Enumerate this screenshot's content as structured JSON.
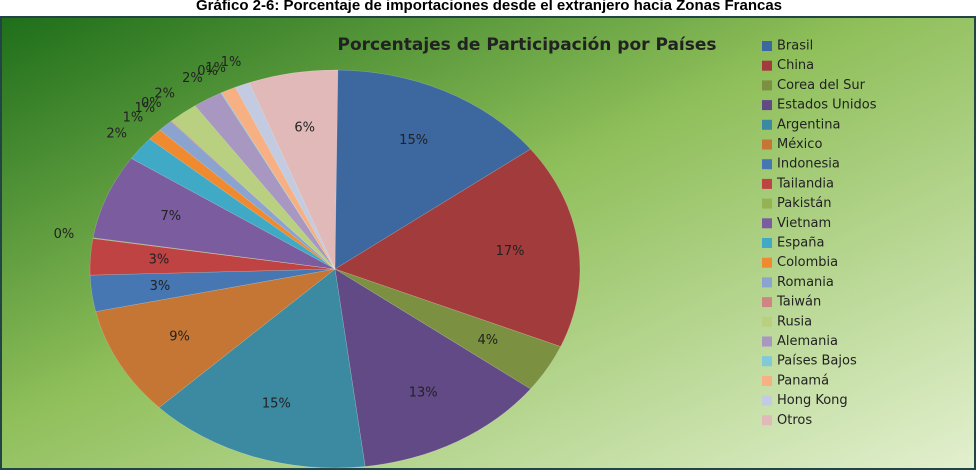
{
  "chart_data": {
    "type": "pie",
    "caption": "Gráfico 2-6: Porcentaje de importaciones desde el extranjero hacia Zonas Francas",
    "title": "Porcentajes de Participación por Países",
    "categories": [
      "Brasil",
      "China",
      "Corea del Sur",
      "Estados Unidos",
      "Argentina",
      "México",
      "Indonesia",
      "Tailandia",
      "Pakistán",
      "Vietnam",
      "España",
      "Colombia",
      "Romania",
      "Taiwán",
      "Rusia",
      "Alemania",
      "Países Bajos",
      "Panamá",
      "Hong Kong",
      "Otros"
    ],
    "values": [
      15,
      17,
      4,
      13,
      15,
      9,
      3,
      3,
      0,
      7,
      2,
      1,
      1,
      0,
      2,
      2,
      0,
      1,
      1,
      6
    ],
    "value_labels": [
      "15%",
      "17%",
      "4%",
      "13%",
      "15%",
      "9%",
      "3%",
      "3%",
      "0%",
      "7%",
      "2%",
      "1%",
      "1%",
      "0%",
      "2%",
      "2%",
      "0%",
      "1%",
      "1%",
      "6%"
    ],
    "colors": [
      "#3d679f",
      "#a23b3b",
      "#7b9040",
      "#614a85",
      "#3b8aa2",
      "#c57634",
      "#4677b3",
      "#bf4343",
      "#95b254",
      "#7a5c9f",
      "#3fa9c6",
      "#ef8a30",
      "#8aa4cf",
      "#d08585",
      "#b9d080",
      "#a797c1",
      "#80c9d9",
      "#f7b083",
      "#c3cbe2",
      "#e2b9b9"
    ],
    "legend": "right"
  }
}
